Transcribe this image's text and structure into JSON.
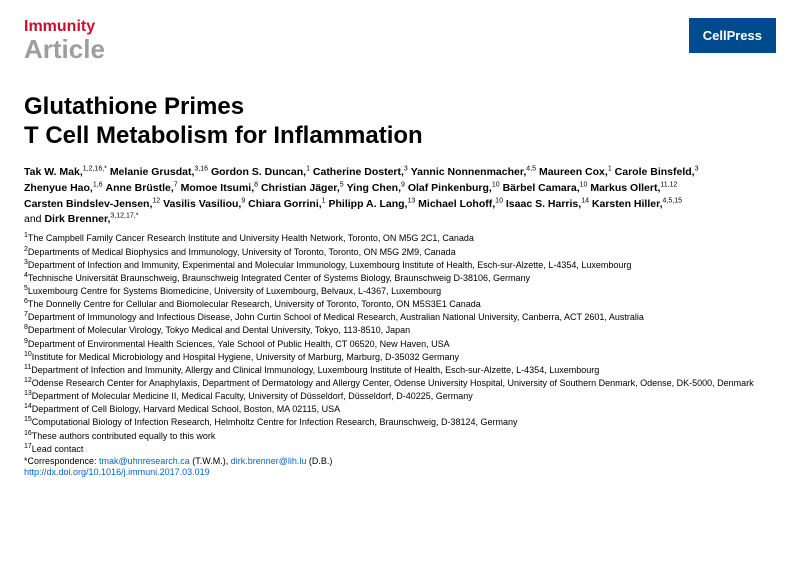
{
  "header": {
    "journal": "Immunity",
    "article_type": "Article",
    "publisher_badge": "CellPress"
  },
  "title_line1": "Glutathione Primes",
  "title_line2": "T Cell Metabolism for Inflammation",
  "authors": [
    {
      "name": "Tak W. Mak",
      "sup": "1,2,16,*"
    },
    {
      "name": "Melanie Grusdat",
      "sup": "3,16"
    },
    {
      "name": "Gordon S. Duncan",
      "sup": "1"
    },
    {
      "name": "Catherine Dostert",
      "sup": "3"
    },
    {
      "name": "Yannic Nonnenmacher",
      "sup": "4,5"
    },
    {
      "name": "Maureen Cox",
      "sup": "1"
    },
    {
      "name": "Carole Binsfeld",
      "sup": "3"
    },
    {
      "name": "Zhenyue Hao",
      "sup": "1,6"
    },
    {
      "name": "Anne Brüstle",
      "sup": "7"
    },
    {
      "name": "Momoe Itsumi",
      "sup": "8"
    },
    {
      "name": "Christian Jäger",
      "sup": "5"
    },
    {
      "name": "Ying Chen",
      "sup": "9"
    },
    {
      "name": "Olaf Pinkenburg",
      "sup": "10"
    },
    {
      "name": "Bärbel Camara",
      "sup": "10"
    },
    {
      "name": "Markus Ollert",
      "sup": "11,12"
    },
    {
      "name": "Carsten Bindslev-Jensen",
      "sup": "12"
    },
    {
      "name": "Vasilis Vasiliou",
      "sup": "9"
    },
    {
      "name": "Chiara Gorrini",
      "sup": "1"
    },
    {
      "name": "Philipp A. Lang",
      "sup": "13"
    },
    {
      "name": "Michael Lohoff",
      "sup": "10"
    },
    {
      "name": "Isaac S. Harris",
      "sup": "14"
    },
    {
      "name": "Karsten Hiller",
      "sup": "4,5,15"
    },
    {
      "name": "Dirk Brenner",
      "sup": "3,12,17,*"
    }
  ],
  "affiliations": [
    {
      "n": "1",
      "text": "The Campbell Family Cancer Research Institute and University Health Network, Toronto, ON M5G 2C1, Canada"
    },
    {
      "n": "2",
      "text": "Departments of Medical Biophysics and Immunology, University of Toronto, Toronto, ON M5G 2M9, Canada"
    },
    {
      "n": "3",
      "text": "Department of Infection and Immunity, Experimental and Molecular Immunology, Luxembourg Institute of Health, Esch-sur-Alzette, L-4354, Luxembourg"
    },
    {
      "n": "4",
      "text": "Technische Universität Braunschweig, Braunschweig Integrated Center of Systems Biology, Braunschweig D-38106, Germany"
    },
    {
      "n": "5",
      "text": "Luxembourg Centre for Systems Biomedicine, University of Luxembourg, Belvaux, L-4367, Luxembourg"
    },
    {
      "n": "6",
      "text": "The Donnelly Centre for Cellular and Biomolecular Research, University of Toronto, Toronto, ON M5S3E1 Canada"
    },
    {
      "n": "7",
      "text": "Department of Immunology and Infectious Disease, John Curtin School of Medical Research, Australian National University, Canberra, ACT 2601, Australia"
    },
    {
      "n": "8",
      "text": "Department of Molecular Virology, Tokyo Medical and Dental University, Tokyo, 113-8510, Japan"
    },
    {
      "n": "9",
      "text": "Department of Environmental Health Sciences, Yale School of Public Health, CT 06520, New Haven, USA"
    },
    {
      "n": "10",
      "text": "Institute for Medical Microbiology and Hospital Hygiene, University of Marburg, Marburg, D-35032 Germany"
    },
    {
      "n": "11",
      "text": "Department of Infection and Immunity, Allergy and Clinical Immunology, Luxembourg Institute of Health, Esch-sur-Alzette, L-4354, Luxembourg"
    },
    {
      "n": "12",
      "text": "Odense Research Center for Anaphylaxis, Department of Dermatology and Allergy Center, Odense University Hospital, University of Southern Denmark, Odense, DK-5000, Denmark"
    },
    {
      "n": "13",
      "text": "Department of Molecular Medicine II, Medical Faculty, University of Düsseldorf, Düsseldorf, D-40225, Germany"
    },
    {
      "n": "14",
      "text": "Department of Cell Biology, Harvard Medical School, Boston, MA 02115, USA"
    },
    {
      "n": "15",
      "text": "Computational Biology of Infection Research, Helmholtz Centre for Infection Research, Braunschweig, D-38124, Germany"
    },
    {
      "n": "16",
      "text": "These authors contributed equally to this work"
    },
    {
      "n": "17",
      "text": "Lead contact"
    }
  ],
  "correspondence": {
    "label": "*Correspondence: ",
    "email1": "tmak@uhnresearch.ca",
    "paren1": " (T.W.M.), ",
    "email2": "dirk.brenner@lih.lu",
    "paren2": " (D.B.)"
  },
  "doi": "http://dx.doi.org/10.1016/j.immuni.2017.03.019",
  "colors": {
    "journal_red": "#c8102e",
    "gray": "#9e9e9e",
    "badge_bg": "#004b8d",
    "link": "#0066cc"
  }
}
